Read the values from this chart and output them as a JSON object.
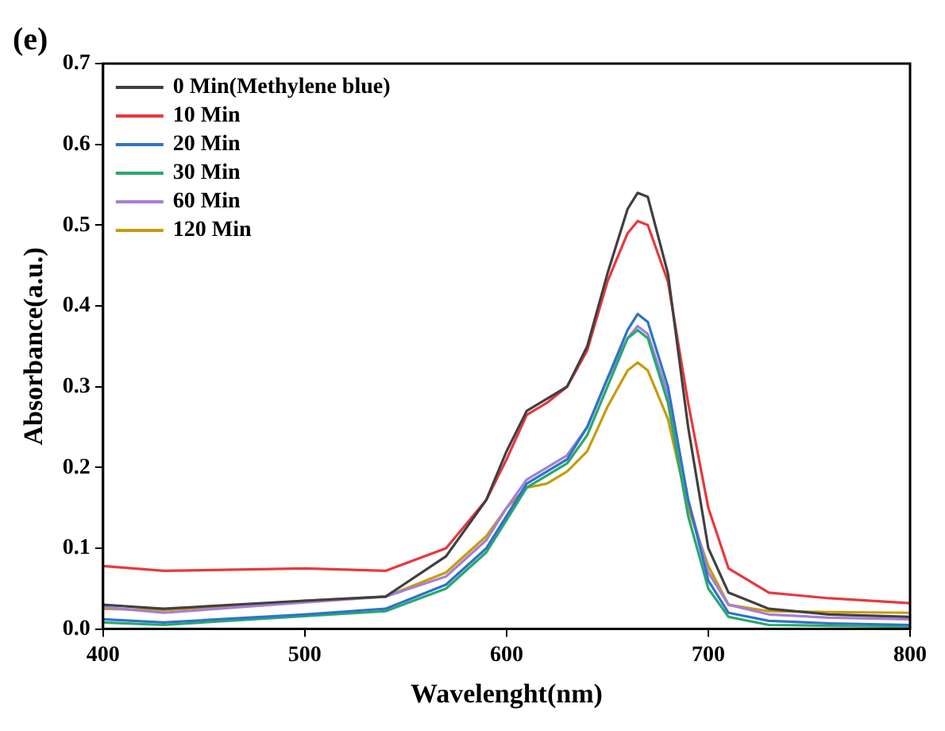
{
  "chart_data": {
    "type": "line",
    "title": "(e)",
    "xlabel": "Wavelenght(nm)",
    "ylabel": "Absorbance(a.u.)",
    "x": [
      400,
      430,
      500,
      540,
      570,
      590,
      600,
      610,
      620,
      630,
      640,
      650,
      660,
      665,
      670,
      680,
      690,
      700,
      710,
      730,
      760,
      800
    ],
    "series": [
      {
        "name": "0 Min(Methylene blue)",
        "color": "#404040",
        "values": [
          0.03,
          0.025,
          0.035,
          0.04,
          0.09,
          0.16,
          0.22,
          0.27,
          0.285,
          0.3,
          0.35,
          0.44,
          0.52,
          0.54,
          0.535,
          0.44,
          0.25,
          0.1,
          0.045,
          0.025,
          0.018,
          0.015
        ]
      },
      {
        "name": "10 Min",
        "color": "#e8383d",
        "values": [
          0.078,
          0.072,
          0.075,
          0.072,
          0.1,
          0.16,
          0.21,
          0.265,
          0.28,
          0.3,
          0.345,
          0.43,
          0.49,
          0.505,
          0.5,
          0.43,
          0.28,
          0.15,
          0.075,
          0.045,
          0.038,
          0.032
        ]
      },
      {
        "name": "20 Min",
        "color": "#2f73c8",
        "values": [
          0.012,
          0.008,
          0.018,
          0.025,
          0.055,
          0.1,
          0.14,
          0.18,
          0.195,
          0.21,
          0.25,
          0.31,
          0.37,
          0.39,
          0.38,
          0.3,
          0.16,
          0.06,
          0.02,
          0.01,
          0.007,
          0.005
        ]
      },
      {
        "name": "30 Min",
        "color": "#27a96e",
        "values": [
          0.008,
          0.005,
          0.016,
          0.022,
          0.05,
          0.095,
          0.135,
          0.175,
          0.19,
          0.205,
          0.24,
          0.3,
          0.36,
          0.37,
          0.36,
          0.28,
          0.14,
          0.05,
          0.015,
          0.005,
          0.004,
          0.003
        ]
      },
      {
        "name": "60 Min",
        "color": "#a67ed8",
        "values": [
          0.027,
          0.02,
          0.033,
          0.04,
          0.065,
          0.11,
          0.15,
          0.185,
          0.2,
          0.215,
          0.25,
          0.31,
          0.36,
          0.375,
          0.365,
          0.29,
          0.16,
          0.07,
          0.03,
          0.018,
          0.014,
          0.012
        ]
      },
      {
        "name": "120 Min",
        "color": "#c89b0c",
        "values": [
          0.025,
          0.023,
          0.035,
          0.04,
          0.07,
          0.115,
          0.15,
          0.175,
          0.18,
          0.195,
          0.22,
          0.275,
          0.32,
          0.33,
          0.32,
          0.26,
          0.15,
          0.078,
          0.03,
          0.022,
          0.021,
          0.02
        ]
      }
    ],
    "xlim": [
      400,
      800
    ],
    "xticks": [
      400,
      500,
      600,
      700,
      800
    ],
    "ylim": [
      0,
      0.7
    ],
    "yticks": [
      {
        "value": 0,
        "label": "0.0"
      },
      0.1,
      0.2,
      0.3,
      0.4,
      0.5,
      0.6,
      0.7
    ],
    "grid": false,
    "legend": "top left",
    "marker": "none",
    "line_style": "solid"
  }
}
